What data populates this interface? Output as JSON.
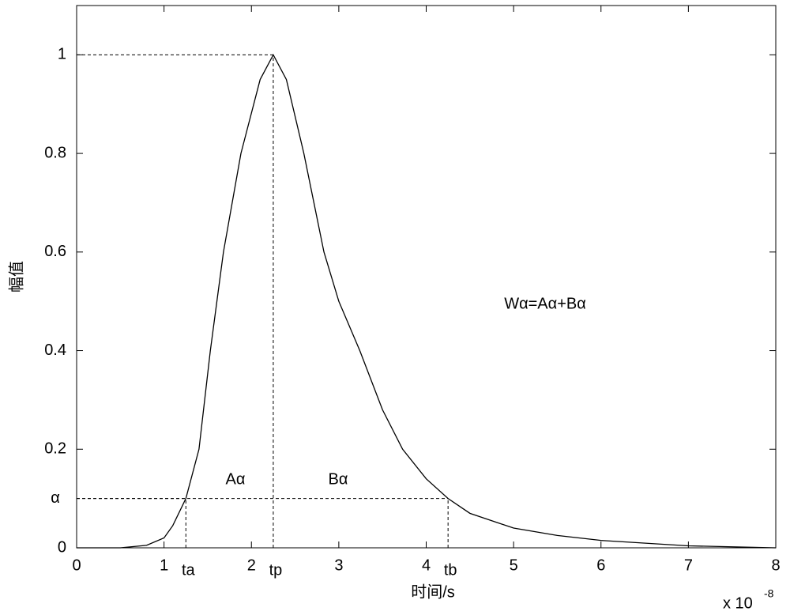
{
  "chart_data": {
    "type": "line",
    "xlabel": "时间/s",
    "ylabel": "幅值",
    "x_multiplier": {
      "base": "x 10",
      "exponent": "-8"
    },
    "xlim": [
      0,
      8
    ],
    "ylim": [
      0,
      1.1
    ],
    "xticks": [
      0,
      1,
      2,
      3,
      4,
      5,
      6,
      7,
      8
    ],
    "yticks": [
      0,
      0.2,
      0.4,
      0.6,
      0.8,
      1
    ],
    "series": [
      {
        "color": "#000000",
        "x": [
          0,
          0.5,
          0.8,
          1.0,
          1.1,
          1.25,
          1.4,
          1.53,
          1.68,
          1.88,
          2.1,
          2.25,
          2.4,
          2.6,
          2.83,
          3.0,
          3.24,
          3.5,
          3.73,
          4.0,
          4.25,
          4.5,
          5.0,
          5.5,
          6.0,
          7.0,
          8.0
        ],
        "values": [
          0,
          0,
          0.005,
          0.02,
          0.045,
          0.1,
          0.2,
          0.4,
          0.6,
          0.8,
          0.95,
          1.0,
          0.95,
          0.8,
          0.6,
          0.5,
          0.4,
          0.28,
          0.2,
          0.14,
          0.1,
          0.07,
          0.04,
          0.025,
          0.015,
          0.004,
          0
        ]
      }
    ],
    "points": [
      {
        "label": "ta",
        "x": 1.25,
        "y": 0.1
      },
      {
        "label": "tp",
        "x": 2.25,
        "y": 1
      },
      {
        "label": "tb",
        "x": 4.25,
        "y": 0.1
      }
    ],
    "alpha": {
      "label": "α",
      "value": 0.1
    },
    "annotations": [
      "Aα",
      "Bα",
      "Wα=Aα+Bα"
    ]
  }
}
